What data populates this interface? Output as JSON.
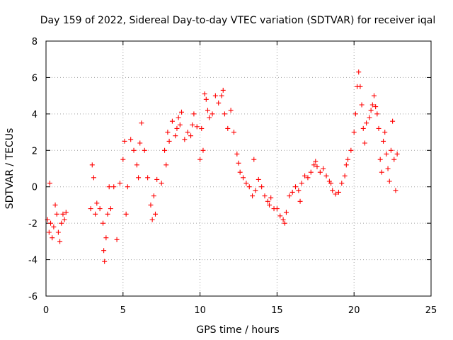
{
  "chart_data": {
    "type": "scatter",
    "title": "Day 159 of 2022, Sidereal Day-to-day VTEC variation (SDTVAR) for receiver iqal",
    "xlabel": "GPS time / hours",
    "ylabel": "SDTVAR / TECUs",
    "xlim": [
      0,
      25
    ],
    "ylim": [
      -6,
      8
    ],
    "xticks": [
      0,
      5,
      10,
      15,
      20,
      25
    ],
    "yticks": [
      -6,
      -4,
      -2,
      0,
      2,
      4,
      6,
      8
    ],
    "grid": true,
    "marker": "+",
    "color": "#ff0000",
    "series": [
      {
        "name": "SDTVAR",
        "x": [
          0.1,
          0.2,
          0.25,
          0.3,
          0.4,
          0.5,
          0.6,
          0.7,
          0.8,
          0.9,
          1.0,
          1.1,
          1.2,
          1.3,
          2.9,
          3.0,
          3.1,
          3.2,
          3.3,
          3.5,
          3.7,
          3.75,
          3.8,
          3.9,
          4.0,
          4.1,
          4.2,
          4.4,
          4.6,
          4.8,
          5.0,
          5.1,
          5.2,
          5.3,
          5.5,
          5.7,
          5.9,
          6.0,
          6.1,
          6.2,
          6.4,
          6.6,
          6.8,
          6.9,
          7.0,
          7.1,
          7.2,
          7.5,
          7.7,
          7.8,
          7.9,
          8.0,
          8.2,
          8.4,
          8.5,
          8.6,
          8.7,
          8.8,
          9.0,
          9.2,
          9.4,
          9.5,
          9.6,
          9.8,
          10.0,
          10.1,
          10.2,
          10.3,
          10.4,
          10.5,
          10.6,
          10.8,
          11.0,
          11.2,
          11.4,
          11.5,
          11.6,
          11.8,
          12.0,
          12.2,
          12.4,
          12.5,
          12.6,
          12.8,
          13.0,
          13.2,
          13.4,
          13.5,
          13.6,
          13.8,
          14.0,
          14.2,
          14.4,
          14.5,
          14.6,
          14.8,
          15.0,
          15.2,
          15.4,
          15.5,
          15.6,
          15.8,
          16.0,
          16.2,
          16.4,
          16.5,
          16.6,
          16.8,
          17.0,
          17.2,
          17.4,
          17.5,
          17.6,
          17.8,
          18.0,
          18.2,
          18.4,
          18.5,
          18.6,
          18.8,
          19.0,
          19.2,
          19.4,
          19.5,
          19.6,
          19.8,
          20.0,
          20.1,
          20.2,
          20.3,
          20.4,
          20.5,
          20.6,
          20.7,
          20.8,
          21.0,
          21.1,
          21.2,
          21.3,
          21.4,
          21.5,
          21.6,
          21.7,
          21.8,
          21.9,
          22.0,
          22.1,
          22.2,
          22.3,
          22.4,
          22.5,
          22.6,
          22.7,
          22.8
        ],
        "y": [
          -1.8,
          -2.5,
          0.2,
          -2.0,
          -2.8,
          -2.2,
          -1.0,
          -1.5,
          -2.5,
          -3.0,
          -2.0,
          -1.5,
          -1.8,
          -1.4,
          -1.2,
          1.2,
          0.5,
          -1.5,
          -0.9,
          -1.2,
          -2.0,
          -3.5,
          -4.1,
          -2.8,
          -1.5,
          0.0,
          -1.2,
          0.0,
          -2.9,
          0.2,
          1.5,
          2.5,
          -1.5,
          0.0,
          2.6,
          2.0,
          1.2,
          0.5,
          2.4,
          3.5,
          2.0,
          0.5,
          -1.0,
          -1.8,
          -0.5,
          -1.5,
          0.4,
          0.2,
          2.0,
          1.2,
          3.0,
          2.5,
          3.6,
          2.8,
          3.2,
          3.8,
          3.4,
          4.1,
          2.6,
          3.0,
          2.8,
          3.4,
          4.0,
          3.3,
          1.5,
          3.2,
          2.0,
          5.1,
          4.8,
          4.2,
          3.8,
          4.0,
          5.0,
          4.6,
          5.0,
          5.3,
          4.0,
          3.2,
          4.2,
          3.0,
          1.8,
          1.3,
          0.8,
          0.5,
          0.2,
          0.0,
          -0.5,
          1.5,
          -0.2,
          0.4,
          0.0,
          -0.5,
          -0.8,
          -1.0,
          -0.6,
          -1.2,
          -1.2,
          -1.6,
          -1.8,
          -2.0,
          -1.4,
          -0.5,
          -0.3,
          0.0,
          -0.2,
          -0.8,
          0.2,
          0.6,
          0.5,
          0.8,
          1.2,
          1.4,
          1.1,
          0.8,
          1.0,
          0.6,
          0.3,
          0.2,
          -0.2,
          -0.4,
          -0.3,
          0.2,
          0.6,
          1.2,
          1.5,
          2.0,
          3.0,
          4.0,
          5.5,
          6.3,
          5.5,
          4.5,
          3.2,
          2.4,
          3.5,
          3.8,
          4.2,
          4.5,
          5.0,
          4.4,
          4.0,
          3.2,
          1.5,
          0.8,
          2.5,
          3.0,
          1.8,
          1.0,
          0.3,
          2.0,
          3.6,
          1.5,
          -0.2,
          1.8
        ]
      }
    ]
  }
}
